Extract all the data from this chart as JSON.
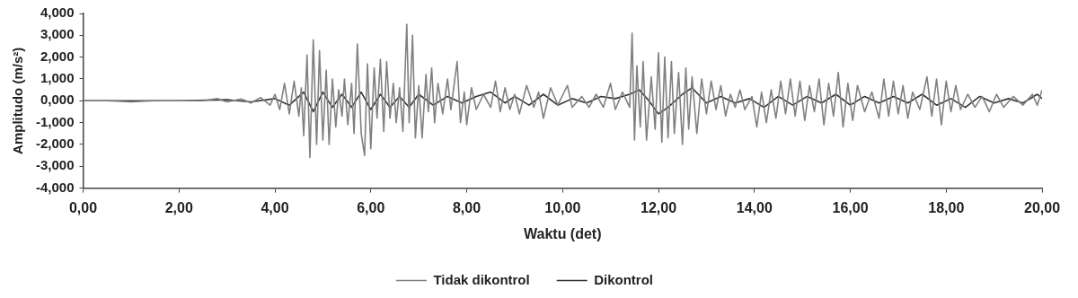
{
  "chart_data": {
    "type": "line",
    "xlabel": "Waktu (det)",
    "ylabel": "Amplitudo (m/s²)",
    "legend": "bottom",
    "grid": false,
    "marker": "none",
    "line_style": "solid",
    "xlim": [
      0,
      20
    ],
    "xticks": [
      {
        "value": 0,
        "label": "0,00"
      },
      {
        "value": 2,
        "label": "2,00"
      },
      {
        "value": 4,
        "label": "4,00"
      },
      {
        "value": 6,
        "label": "6,00"
      },
      {
        "value": 8,
        "label": "8,00"
      },
      {
        "value": 10,
        "label": "10,00"
      },
      {
        "value": 12,
        "label": "12,00"
      },
      {
        "value": 14,
        "label": "14,00"
      },
      {
        "value": 16,
        "label": "16,00"
      },
      {
        "value": 18,
        "label": "18,00"
      },
      {
        "value": 20,
        "label": "20,00"
      }
    ],
    "ylim": [
      -4,
      4
    ],
    "yticks": [
      {
        "value": -4,
        "label": "-4,000"
      },
      {
        "value": -3,
        "label": "-3,000"
      },
      {
        "value": -2,
        "label": "-2,000"
      },
      {
        "value": -1,
        "label": "-1,000"
      },
      {
        "value": 0,
        "label": "0,000"
      },
      {
        "value": 1,
        "label": "1,000"
      },
      {
        "value": 2,
        "label": "2,000"
      },
      {
        "value": 3,
        "label": "3,000"
      },
      {
        "value": 4,
        "label": "4,000"
      }
    ],
    "series": [
      {
        "name": "Tidak dikontrol",
        "color": "#808080",
        "x": [
          0,
          0.5,
          1.0,
          1.5,
          2.0,
          2.5,
          2.8,
          3.0,
          3.3,
          3.5,
          3.7,
          3.9,
          4.0,
          4.1,
          4.2,
          4.3,
          4.4,
          4.5,
          4.55,
          4.6,
          4.67,
          4.73,
          4.8,
          4.87,
          4.93,
          5.0,
          5.07,
          5.13,
          5.2,
          5.27,
          5.33,
          5.4,
          5.45,
          5.52,
          5.6,
          5.65,
          5.72,
          5.8,
          5.87,
          5.93,
          6.0,
          6.07,
          6.13,
          6.2,
          6.27,
          6.33,
          6.4,
          6.47,
          6.53,
          6.6,
          6.67,
          6.75,
          6.8,
          6.87,
          6.93,
          7.0,
          7.07,
          7.15,
          7.2,
          7.27,
          7.33,
          7.4,
          7.5,
          7.6,
          7.67,
          7.8,
          7.87,
          7.95,
          8.0,
          8.1,
          8.2,
          8.35,
          8.5,
          8.6,
          8.7,
          8.8,
          8.9,
          9.0,
          9.1,
          9.25,
          9.4,
          9.5,
          9.6,
          9.75,
          9.9,
          10.1,
          10.2,
          10.4,
          10.55,
          10.7,
          10.85,
          11.0,
          11.1,
          11.25,
          11.4,
          11.45,
          11.5,
          11.55,
          11.62,
          11.68,
          11.75,
          11.85,
          11.93,
          12.0,
          12.07,
          12.13,
          12.2,
          12.27,
          12.33,
          12.42,
          12.5,
          12.57,
          12.63,
          12.7,
          12.8,
          12.9,
          13.0,
          13.1,
          13.2,
          13.3,
          13.4,
          13.5,
          13.6,
          13.7,
          13.8,
          13.95,
          14.05,
          14.15,
          14.25,
          14.35,
          14.45,
          14.55,
          14.65,
          14.75,
          14.85,
          14.95,
          15.05,
          15.15,
          15.25,
          15.35,
          15.45,
          15.55,
          15.65,
          15.75,
          15.85,
          15.95,
          16.05,
          16.15,
          16.3,
          16.45,
          16.6,
          16.7,
          16.8,
          16.9,
          17.0,
          17.1,
          17.2,
          17.3,
          17.45,
          17.6,
          17.7,
          17.8,
          17.9,
          18.0,
          18.1,
          18.2,
          18.3,
          18.45,
          18.6,
          18.75,
          18.9,
          19.05,
          19.2,
          19.4,
          19.6,
          19.8,
          19.9,
          20.0
        ],
        "values": [
          0,
          0,
          -0.05,
          0,
          0,
          0,
          0.1,
          -0.05,
          0.08,
          -0.1,
          0.15,
          -0.2,
          0.3,
          -0.4,
          0.8,
          -0.6,
          0.9,
          -0.7,
          0.6,
          -1.6,
          2.1,
          -2.6,
          2.8,
          -2.0,
          2.3,
          -1.8,
          1.4,
          -2.0,
          1.0,
          -1.2,
          0.5,
          -0.7,
          1.0,
          -1.1,
          0.8,
          -1.5,
          2.6,
          -1.5,
          -2.5,
          1.7,
          -2.2,
          1.5,
          -0.8,
          1.9,
          -1.4,
          1.8,
          -0.8,
          0.8,
          -1.0,
          0.6,
          -1.4,
          3.5,
          -1.0,
          3.0,
          -1.7,
          0.7,
          -1.7,
          1.2,
          -0.5,
          1.5,
          -1.0,
          0.8,
          -0.6,
          1.0,
          -0.4,
          1.8,
          -1.0,
          0.4,
          -1.1,
          0.6,
          -0.4,
          0.3,
          -0.3,
          0.9,
          -0.5,
          0.6,
          -0.4,
          0.3,
          -0.6,
          0.7,
          -0.3,
          0.4,
          -0.8,
          0.6,
          -0.2,
          0.7,
          -0.3,
          0.2,
          -0.3,
          0.3,
          -0.3,
          0.8,
          -0.4,
          0.4,
          -0.3,
          3.1,
          -1.8,
          1.6,
          -1.2,
          1.8,
          -1.8,
          1.1,
          -1.3,
          2.2,
          -1.9,
          2.0,
          -1.7,
          1.8,
          -1.5,
          1.3,
          -2.0,
          1.5,
          -1.3,
          1.1,
          -1.5,
          1.0,
          -0.6,
          0.9,
          -0.4,
          0.7,
          -0.7,
          0.3,
          -0.3,
          0.5,
          -0.4,
          0.2,
          -1.2,
          0.4,
          -1.0,
          0.5,
          -0.8,
          0.9,
          -0.6,
          1.0,
          -0.7,
          0.9,
          -0.9,
          0.7,
          -0.5,
          1.0,
          -1.1,
          0.8,
          -0.7,
          1.3,
          -1.2,
          0.8,
          -0.9,
          0.7,
          -0.5,
          0.4,
          -0.8,
          1.0,
          -0.7,
          0.9,
          -0.6,
          0.7,
          -0.8,
          0.4,
          -0.4,
          1.1,
          -0.7,
          1.0,
          -1.1,
          0.9,
          -0.5,
          0.7,
          -0.4,
          0.3,
          -0.3,
          0.2,
          -0.5,
          0.3,
          -0.3,
          0.2,
          -0.2,
          0.3,
          -0.2,
          0.5
        ]
      },
      {
        "name": "Dikontrol",
        "color": "#333333",
        "x": [
          0,
          2,
          3,
          3.5,
          4,
          4.3,
          4.6,
          4.8,
          5.0,
          5.2,
          5.4,
          5.6,
          5.8,
          6.0,
          6.2,
          6.4,
          6.6,
          6.8,
          7.0,
          7.3,
          7.6,
          7.9,
          8.2,
          8.5,
          8.8,
          9.0,
          9.3,
          9.6,
          9.9,
          10.2,
          10.5,
          10.8,
          11.1,
          11.4,
          11.6,
          11.8,
          12.0,
          12.2,
          12.5,
          12.7,
          13.0,
          13.3,
          13.6,
          13.9,
          14.2,
          14.5,
          14.8,
          15.1,
          15.4,
          15.7,
          16.0,
          16.3,
          16.6,
          16.9,
          17.2,
          17.5,
          17.8,
          18.1,
          18.4,
          18.7,
          19.0,
          19.3,
          19.6,
          19.9,
          20.0
        ],
        "values": [
          0,
          0,
          0.05,
          -0.05,
          0.1,
          -0.2,
          0.4,
          -0.5,
          0.4,
          -0.3,
          0.3,
          -0.3,
          0.4,
          -0.4,
          0.3,
          -0.3,
          0.2,
          -0.3,
          0.3,
          -0.2,
          0.2,
          -0.1,
          0.2,
          0.4,
          -0.1,
          0.2,
          -0.2,
          0.3,
          -0.2,
          0.1,
          -0.1,
          0.2,
          0.1,
          0.3,
          0.5,
          0,
          -0.6,
          -0.3,
          0.3,
          0.6,
          -0.1,
          0.2,
          -0.1,
          0.1,
          -0.3,
          0.2,
          -0.2,
          0.2,
          -0.1,
          0.3,
          -0.2,
          0.2,
          -0.1,
          0.2,
          -0.1,
          0.3,
          -0.2,
          0.1,
          -0.3,
          0.2,
          -0.1,
          0.1,
          -0.1,
          0.3,
          0.1
        ]
      }
    ]
  }
}
